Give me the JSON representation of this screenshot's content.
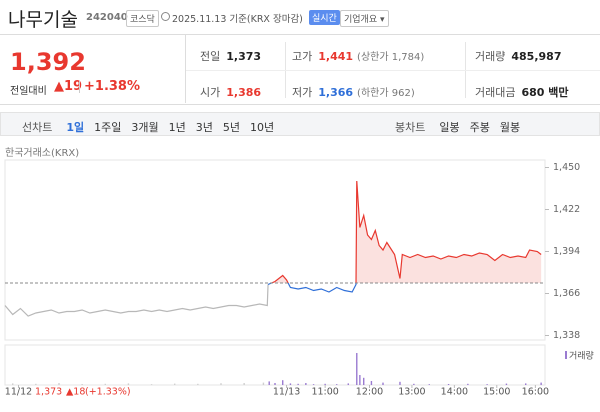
{
  "header": {
    "name": "나무기술",
    "code": "242040",
    "market": "코스닥",
    "date": "2025.11.13 기준(KRX 장마감)",
    "realtime": "실시간",
    "overview": "기업개요"
  },
  "quote": {
    "price": "1,392",
    "change_label": "전일대비",
    "change": "▲19",
    "rate": "+1.38%",
    "stats": [
      {
        "label": "전일",
        "value": "1,373",
        "color": "#222222"
      },
      {
        "label": "고가",
        "value": "1,441",
        "note": "(상한가 1,784)",
        "color": "#e8382f"
      },
      {
        "label": "거래량",
        "value": "485,987",
        "color": "#222222"
      },
      {
        "label": "시가",
        "value": "1,386",
        "color": "#e8382f"
      },
      {
        "label": "저가",
        "value": "1,366",
        "note": "(하한가 962)",
        "color": "#2f6fd8"
      },
      {
        "label": "거래대금",
        "value": "680 백만",
        "color": "#222222"
      }
    ]
  },
  "tabs": {
    "line_label": "선차트",
    "periods": [
      "1일",
      "1주일",
      "3개월",
      "1년",
      "3년",
      "5년",
      "10년"
    ],
    "active": 0,
    "candle_label": "봉차트",
    "candles": [
      "일봉",
      "주봉",
      "월봉"
    ]
  },
  "source": "한국거래소(KRX)",
  "footer": {
    "price": "1,373",
    "change": "▲18",
    "rate": "(+1.33%)"
  },
  "chart_data": [
    {
      "type": "line",
      "ylim": [
        1335,
        1455
      ],
      "yticks": [
        {
          "value": 1338,
          "label": "1,338"
        },
        {
          "value": 1366,
          "label": "1,366"
        },
        {
          "value": 1394,
          "label": "1,394"
        },
        {
          "value": 1422,
          "label": "1,422"
        },
        {
          "value": 1450,
          "label": "1,450"
        }
      ],
      "xlim": [
        0,
        14
      ],
      "xticks": [
        {
          "value": 0.35,
          "label": "11/12"
        },
        {
          "value": 7.3,
          "label": "11/13"
        },
        {
          "value": 8.3,
          "label": "11:00"
        },
        {
          "value": 9.45,
          "label": "12:00"
        },
        {
          "value": 10.55,
          "label": "13:00"
        },
        {
          "value": 11.65,
          "label": "14:00"
        },
        {
          "value": 12.75,
          "label": "15:00"
        },
        {
          "value": 13.75,
          "label": "16:00"
        }
      ],
      "base_line": 1373,
      "up_color": "#e8382f",
      "down_color": "#2f6fd8",
      "fill_color": "#fbe1df",
      "series": [
        {
          "color": "#b8b8b8",
          "x": [
            0,
            0.2,
            0.4,
            0.6,
            0.8,
            1.0,
            1.2,
            1.4,
            1.6,
            1.8,
            2.0,
            2.2,
            2.4,
            2.6,
            2.8,
            3.0,
            3.2,
            3.4,
            3.6,
            3.8,
            4.0,
            4.2,
            4.4,
            4.6,
            4.8,
            5.0,
            5.2,
            5.4,
            5.6,
            5.8,
            6.0,
            6.2,
            6.4,
            6.6,
            6.8,
            6.82
          ],
          "values": [
            1358,
            1352,
            1356,
            1351,
            1353,
            1354,
            1355,
            1353,
            1354,
            1354,
            1355,
            1353,
            1354,
            1355,
            1354,
            1353,
            1354,
            1354,
            1355,
            1354,
            1355,
            1354,
            1355,
            1356,
            1355,
            1356,
            1357,
            1356,
            1357,
            1358,
            1358,
            1357,
            1358,
            1359,
            1358,
            1372
          ]
        },
        {
          "color": "#e8382f",
          "x": [
            6.82,
            7.0,
            7.2,
            7.3,
            7.4,
            7.6,
            7.8,
            8.0,
            8.2,
            8.4,
            8.6,
            8.8,
            9.0,
            9.1,
            9.12,
            9.2,
            9.3,
            9.4,
            9.5,
            9.6,
            9.7,
            9.8,
            9.9,
            10.1,
            10.24,
            10.3,
            10.5,
            10.7,
            10.9,
            11.1,
            11.3,
            11.5,
            11.7,
            11.9,
            12.1,
            12.3,
            12.5,
            12.7,
            12.9,
            13.1,
            13.3,
            13.5,
            13.6,
            13.8,
            13.9
          ],
          "values": [
            1372,
            1374,
            1378,
            1375,
            1370,
            1369,
            1370,
            1368,
            1369,
            1367,
            1370,
            1368,
            1367,
            1372,
            1441,
            1410,
            1418,
            1405,
            1402,
            1408,
            1398,
            1395,
            1400,
            1392,
            1376,
            1392,
            1390,
            1392,
            1390,
            1391,
            1389,
            1391,
            1390,
            1392,
            1391,
            1393,
            1392,
            1388,
            1392,
            1390,
            1391,
            1390,
            1395,
            1394,
            1392
          ]
        }
      ]
    },
    {
      "type": "bar",
      "ylim": [
        0,
        100000
      ],
      "xlim": [
        0,
        14
      ],
      "series": [
        {
          "color": "#cfcfcf",
          "x": [
            0.2,
            0.8,
            1.4,
            2.0,
            2.6,
            3.2,
            3.8,
            4.4,
            5.0,
            5.6,
            6.2,
            6.7
          ],
          "values": [
            4000,
            3000,
            5000,
            2500,
            3000,
            4000,
            2000,
            3500,
            3000,
            4500,
            5000,
            6000
          ]
        },
        {
          "name": "거래량",
          "color": "#9a7bd1",
          "x": [
            6.85,
            7.0,
            7.2,
            7.4,
            7.6,
            7.8,
            8.0,
            8.3,
            8.6,
            8.9,
            9.12,
            9.2,
            9.3,
            9.5,
            9.8,
            10.24,
            10.6,
            11.0,
            11.5,
            12.0,
            12.5,
            13.0,
            13.5,
            13.9
          ],
          "values": [
            9000,
            5000,
            12000,
            4000,
            3000,
            5000,
            2000,
            3000,
            2000,
            4000,
            80000,
            25000,
            18000,
            10000,
            6000,
            8000,
            3000,
            2000,
            2500,
            3000,
            2000,
            3500,
            4000,
            6000
          ]
        }
      ]
    }
  ]
}
